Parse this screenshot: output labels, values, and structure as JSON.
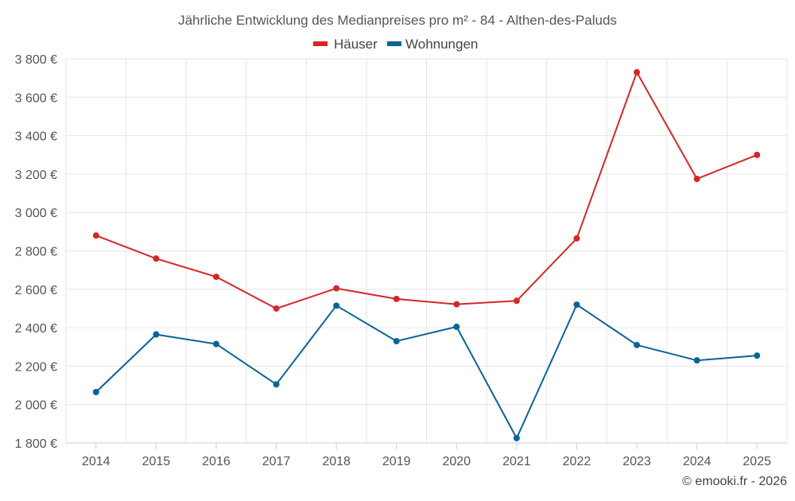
{
  "chart_data": {
    "type": "line",
    "title": "Jährliche Entwicklung des Medianpreises pro m² - 84 - Althen-des-Paluds",
    "x": [
      "2014",
      "2015",
      "2016",
      "2017",
      "2018",
      "2019",
      "2020",
      "2021",
      "2022",
      "2023",
      "2024",
      "2025"
    ],
    "series": [
      {
        "name": "Häuser",
        "color": "#d62728",
        "values": [
          2880,
          2760,
          2665,
          2500,
          2605,
          2550,
          2522,
          2540,
          2865,
          3730,
          3175,
          3300
        ]
      },
      {
        "name": "Wohnungen",
        "color": "#0a6496",
        "values": [
          2065,
          2365,
          2315,
          2105,
          2515,
          2330,
          2405,
          1825,
          2520,
          2310,
          2230,
          2255
        ]
      }
    ],
    "ylim": [
      1800,
      3800
    ],
    "yticks": [
      1800,
      2000,
      2200,
      2400,
      2600,
      2800,
      3000,
      3200,
      3400,
      3600,
      3800
    ],
    "ytick_labels": [
      "1 800 €",
      "2 000 €",
      "2 200 €",
      "2 400 €",
      "2 600 €",
      "2 800 €",
      "3 000 €",
      "3 200 €",
      "3 400 €",
      "3 600 €",
      "3 800 €"
    ],
    "xlabel": "",
    "ylabel": "",
    "legend": "top-center",
    "grid": true
  },
  "credit": "© emooki.fr - 2026"
}
